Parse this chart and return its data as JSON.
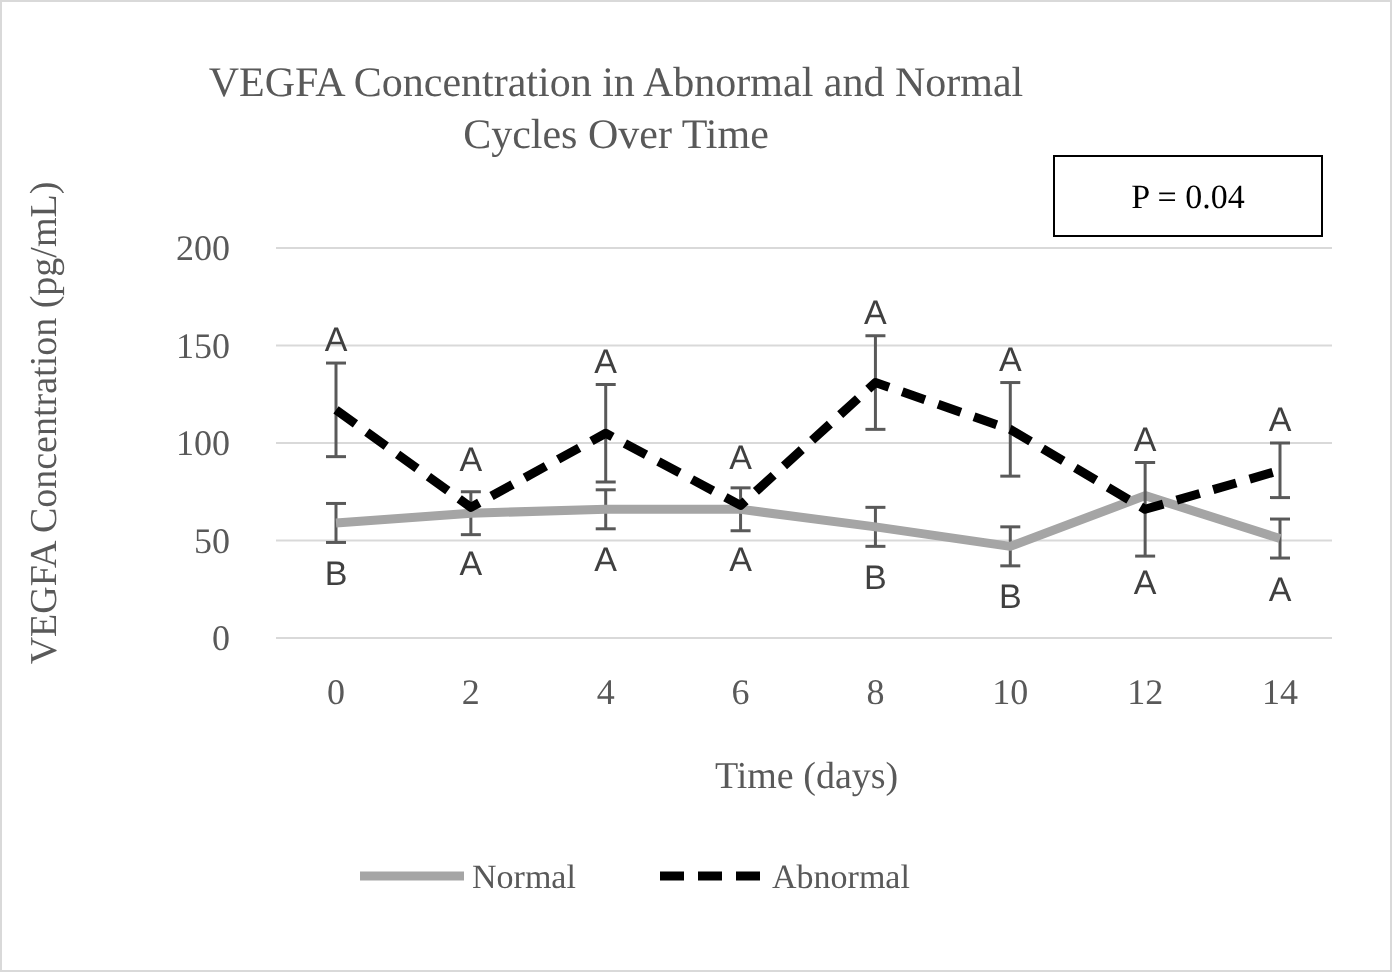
{
  "chart_data": {
    "type": "line",
    "title": "VEGFA Concentration in Abnormal and Normal Cycles Over Time",
    "xlabel": "Time (days)",
    "ylabel": "VEGFA Concentration (pg/mL)",
    "categories": [
      "0",
      "2",
      "4",
      "6",
      "8",
      "10",
      "12",
      "14"
    ],
    "series": [
      {
        "name": "Normal",
        "color": "#a5a5a5",
        "line_style": "solid",
        "values": [
          59,
          64,
          66,
          66,
          57,
          47,
          73,
          51
        ],
        "errors": [
          10,
          11,
          10,
          11,
          10,
          10,
          null,
          10
        ]
      },
      {
        "name": "Abnormal",
        "color": "#000000",
        "line_style": "dashed",
        "values": [
          117,
          67,
          105,
          68,
          131,
          107,
          66,
          86
        ],
        "errors": [
          24,
          null,
          25,
          null,
          24,
          24,
          24,
          14
        ]
      }
    ],
    "ylim": [
      0,
      200
    ],
    "yticks": [
      0,
      50,
      100,
      150,
      200
    ],
    "grid": "y",
    "legend": "bottom",
    "marker": "none",
    "annotations": [
      "P = 0.04",
      {
        "text": "A",
        "x": "0",
        "y": 117
      },
      {
        "text": "A",
        "x": "2",
        "y": 67
      },
      {
        "text": "A",
        "x": "4",
        "y": 105
      },
      {
        "text": "A",
        "x": "6",
        "y": 68
      },
      {
        "text": "A",
        "x": "8",
        "y": 131
      },
      {
        "text": "A",
        "x": "10",
        "y": 107
      },
      {
        "text": "A",
        "x": "12",
        "y": 66
      },
      {
        "text": "A",
        "x": "14",
        "y": 86
      },
      {
        "text": "B",
        "x": "0",
        "y": 59
      },
      {
        "text": "A",
        "x": "2",
        "y": 64
      },
      {
        "text": "A",
        "x": "4",
        "y": 66
      },
      {
        "text": "A",
        "x": "6",
        "y": 66
      },
      {
        "text": "B",
        "x": "8",
        "y": 57
      },
      {
        "text": "B",
        "x": "10",
        "y": 47
      },
      {
        "text": "A",
        "x": "12",
        "y": 73
      },
      {
        "text": "A",
        "x": "14",
        "y": 51
      }
    ]
  }
}
